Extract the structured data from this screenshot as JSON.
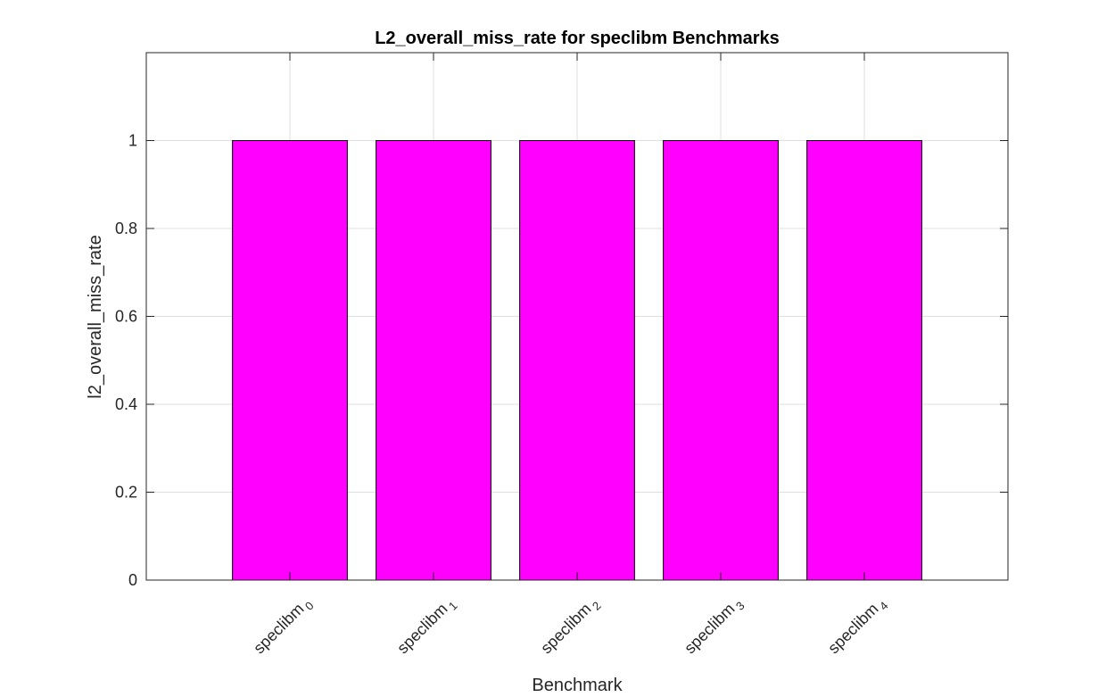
{
  "colors": {
    "bar": "#ff00ff",
    "grid": "#dfdfdf",
    "axis": "#262626"
  },
  "chart_data": {
    "type": "bar",
    "title": "L2_overall_miss_rate for speclibm Benchmarks",
    "xlabel": "Benchmark",
    "ylabel": "l2_overall_miss_rate",
    "categories": [
      {
        "base": "speclibm",
        "sub": "0"
      },
      {
        "base": "speclibm",
        "sub": "1"
      },
      {
        "base": "speclibm",
        "sub": "2"
      },
      {
        "base": "speclibm",
        "sub": "3"
      },
      {
        "base": "speclibm",
        "sub": "4"
      }
    ],
    "values": [
      1,
      1,
      1,
      1,
      1
    ],
    "ylim": [
      0,
      1.2
    ],
    "yticks": [
      0,
      0.2,
      0.4,
      0.6,
      0.8,
      1
    ],
    "ytick_labels": [
      "0",
      "0.2",
      "0.4",
      "0.6",
      "0.8",
      "1"
    ],
    "grid": true,
    "legend": "none"
  }
}
